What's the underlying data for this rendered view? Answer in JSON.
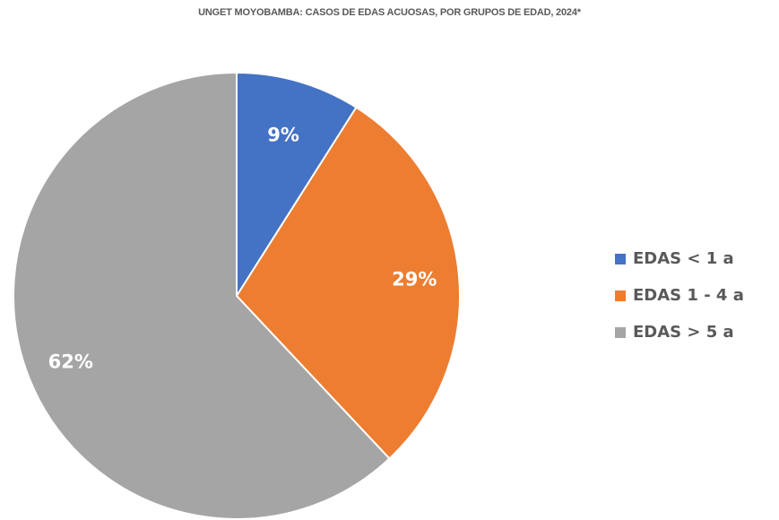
{
  "chart_data": {
    "type": "pie",
    "title": "UNGET MOYOBAMBA: CASOS DE EDAS ACUOSAS, POR GRUPOS DE EDAD, 2024*",
    "slices": [
      {
        "label": "EDAS < 1 a",
        "value": 9,
        "display": "9%",
        "color": "#4472C4"
      },
      {
        "label": "EDAS 1 - 4 a",
        "value": 29,
        "display": "29%",
        "color": "#ED7D31"
      },
      {
        "label": "EDAS > 5 a",
        "value": 62,
        "display": "62%",
        "color": "#A5A5A5"
      }
    ],
    "start_angle": "12 o'clock",
    "direction": "clockwise",
    "legend_position": "right"
  }
}
